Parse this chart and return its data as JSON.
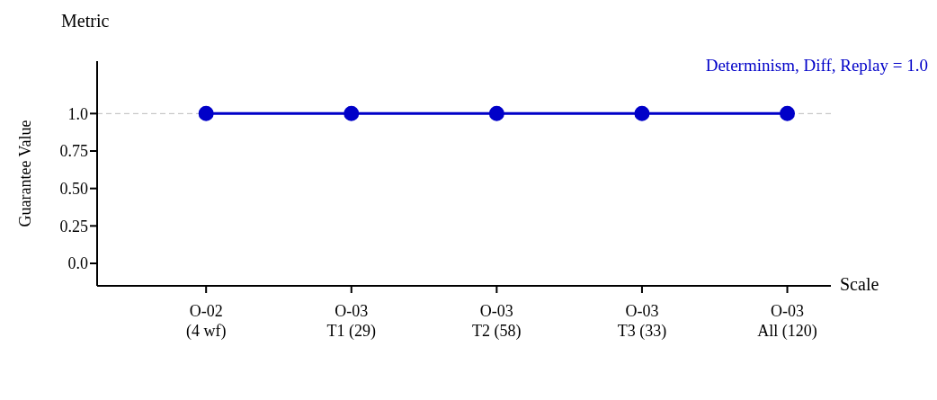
{
  "chart_data": {
    "type": "line",
    "xlabel": "Scale",
    "ylabel": "Guarantee Value",
    "annotations": [
      "Metric",
      "Determinism, Diff, Replay = 1.0"
    ],
    "categories": [
      "O-02\n(4 wf)",
      "O-03\nT1 (29)",
      "O-03\nT2 (58)",
      "O-03\nT3 (33)",
      "O-03\nAll (120)"
    ],
    "series": [
      {
        "color": "#0000c8",
        "values": [
          1.0,
          1.0,
          1.0,
          1.0,
          1.0
        ]
      }
    ],
    "ylim": [
      -0.15,
      1.35
    ],
    "yticks": [
      {
        "value": 0,
        "label": "0.0"
      },
      0.25,
      {
        "value": 0.5,
        "label": "0.50"
      },
      0.75,
      {
        "value": 1,
        "label": "1.0"
      }
    ],
    "ref_lines": [
      {
        "axis": "y",
        "value": 1.0,
        "label": null,
        "color": "#bbbbbb",
        "line_style": "dashed"
      }
    ],
    "grid": false,
    "marker": "circle",
    "line_style": "solid"
  }
}
